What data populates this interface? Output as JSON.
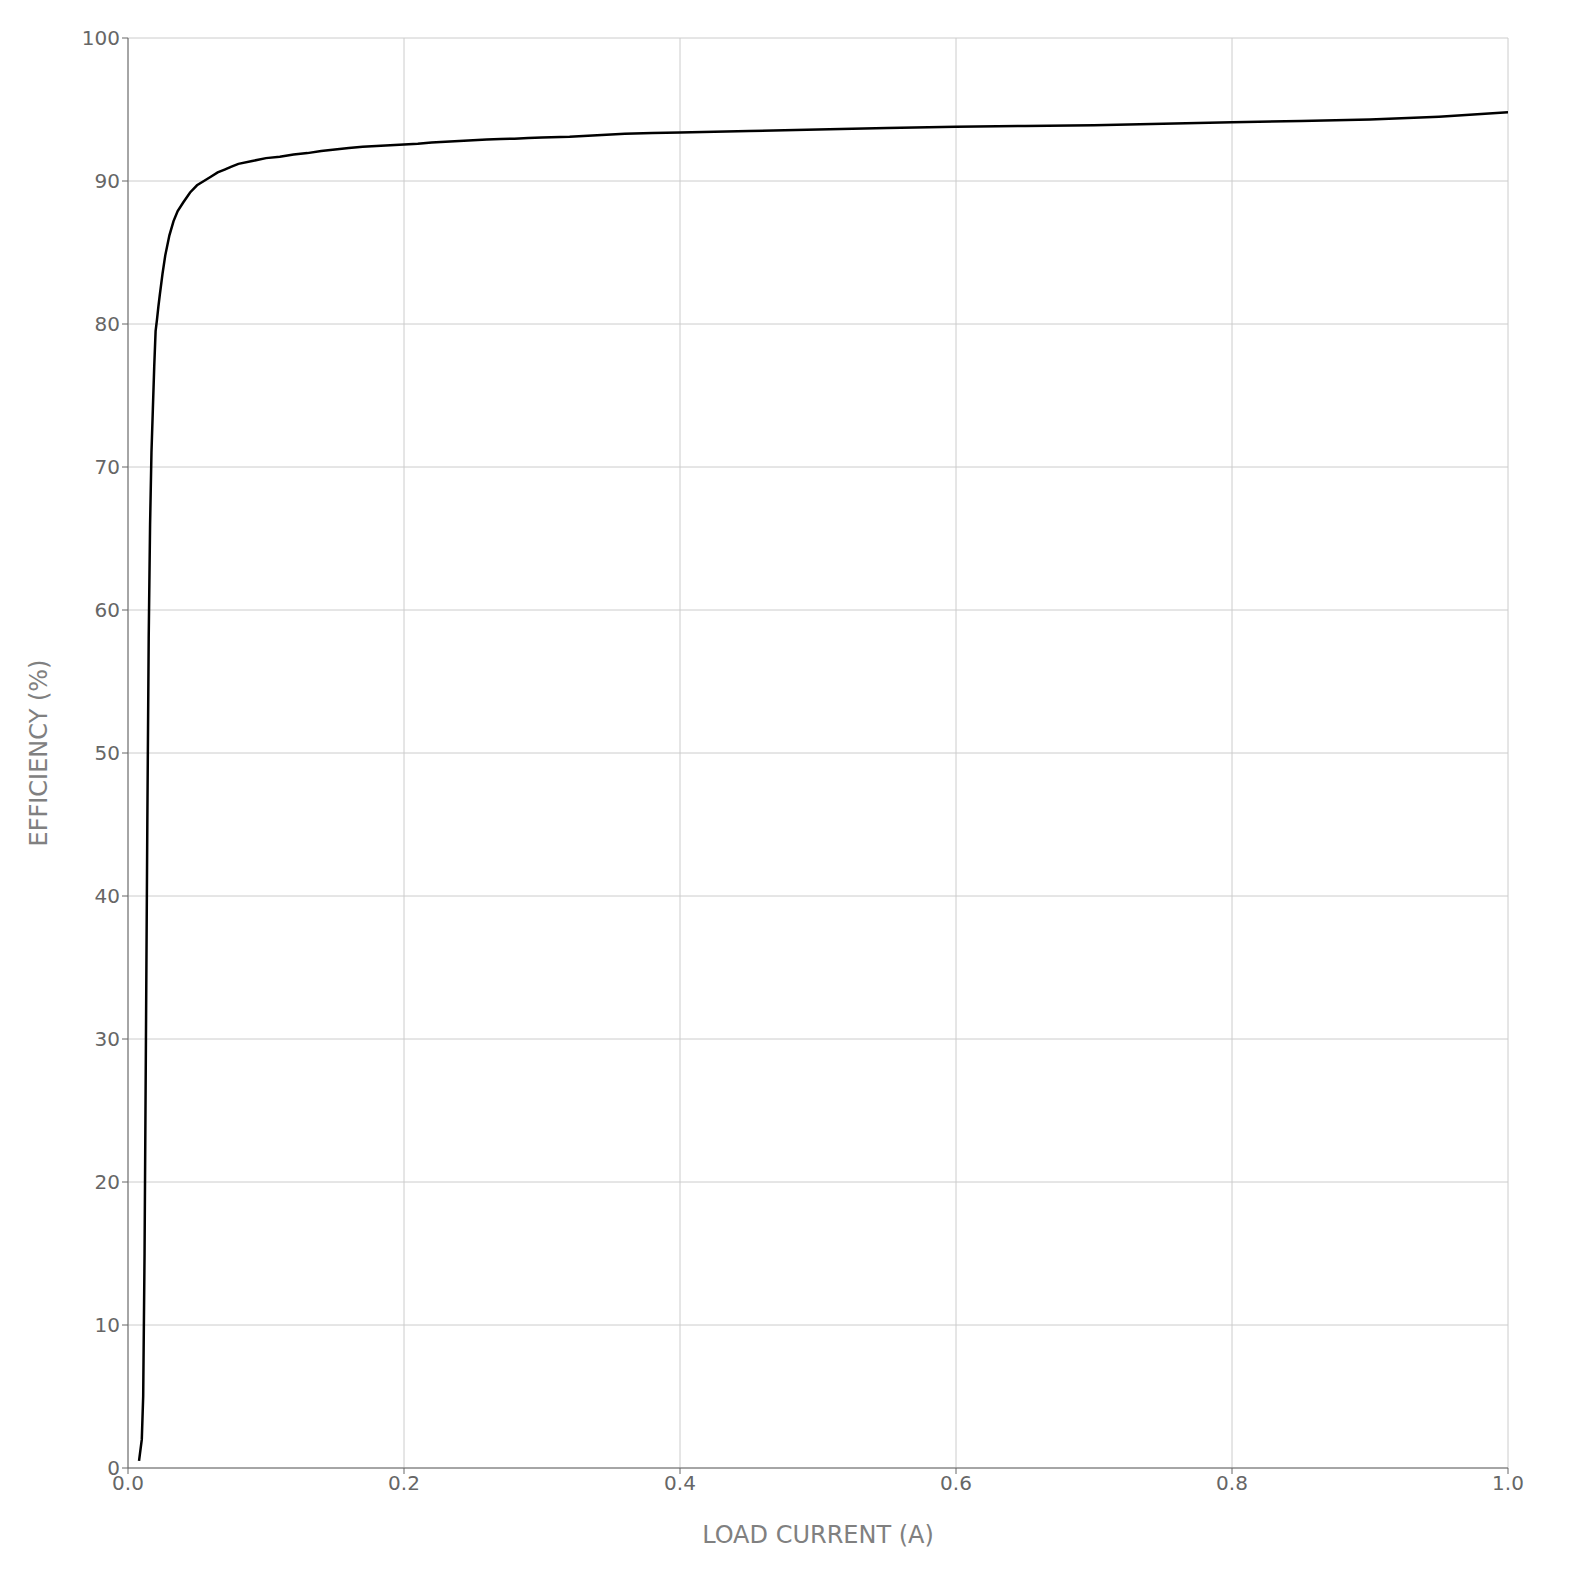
{
  "chart_data": {
    "type": "line",
    "xlabel": "LOAD CURRENT (A)",
    "ylabel": "EFFICIENCY (%)",
    "xlim": [
      0.0,
      1.0
    ],
    "ylim": [
      0,
      100
    ],
    "xticks": [
      {
        "value": 0.0,
        "label": "0.0"
      },
      0.2,
      0.4,
      0.6,
      0.8,
      {
        "value": 1.0,
        "label": "1.0"
      }
    ],
    "yticks": [
      0,
      10,
      20,
      30,
      40,
      50,
      60,
      70,
      80,
      90,
      100
    ],
    "grid": true,
    "color": "#000000",
    "x": [
      0.008,
      0.01,
      0.011,
      0.012,
      0.013,
      0.014,
      0.015,
      0.016,
      0.017,
      0.018,
      0.019,
      0.02,
      0.021,
      0.022,
      0.023,
      0.025,
      0.027,
      0.03,
      0.033,
      0.036,
      0.04,
      0.045,
      0.05,
      0.055,
      0.06,
      0.065,
      0.07,
      0.075,
      0.08,
      0.09,
      0.1,
      0.11,
      0.12,
      0.13,
      0.14,
      0.15,
      0.16,
      0.17,
      0.18,
      0.19,
      0.2,
      0.21,
      0.22,
      0.23,
      0.24,
      0.25,
      0.26,
      0.27,
      0.28,
      0.29,
      0.3,
      0.32,
      0.34,
      0.36,
      0.38,
      0.4,
      0.45,
      0.5,
      0.55,
      0.6,
      0.65,
      0.7,
      0.75,
      0.8,
      0.85,
      0.9,
      0.95,
      1.0
    ],
    "values": [
      0.5,
      2.0,
      5.0,
      15.0,
      30.0,
      45.0,
      58.0,
      66.0,
      71.0,
      74.0,
      77.0,
      79.5,
      80.3,
      81.2,
      82.0,
      83.5,
      84.8,
      86.2,
      87.2,
      87.9,
      88.5,
      89.2,
      89.7,
      90.0,
      90.3,
      90.6,
      90.8,
      91.0,
      91.2,
      91.4,
      91.6,
      91.7,
      91.85,
      91.95,
      92.1,
      92.2,
      92.3,
      92.4,
      92.45,
      92.5,
      92.55,
      92.6,
      92.7,
      92.75,
      92.8,
      92.85,
      92.9,
      92.93,
      92.96,
      93.0,
      93.05,
      93.1,
      93.2,
      93.3,
      93.35,
      93.4,
      93.5,
      93.6,
      93.7,
      93.8,
      93.85,
      93.9,
      94.0,
      94.1,
      94.2,
      94.3,
      94.5,
      94.8
    ]
  }
}
